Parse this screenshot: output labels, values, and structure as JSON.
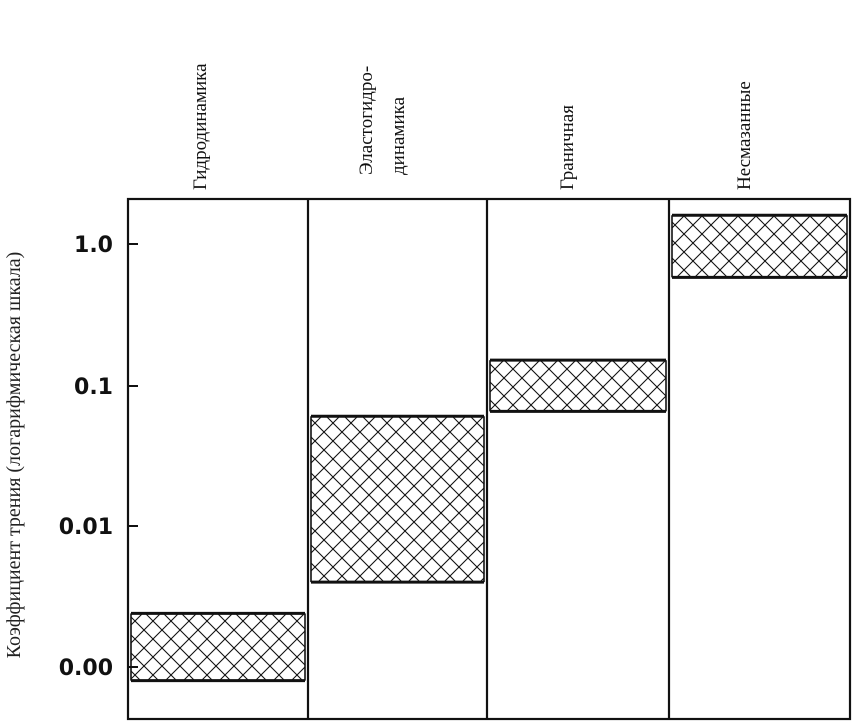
{
  "chart_data": {
    "type": "bar",
    "title": "",
    "subtitle": "",
    "xlabel": "",
    "ylabel": "Коэффициент трения (логарифмическая шкала)",
    "yscale": "log",
    "ylim": [
      0.0005,
      2.0
    ],
    "yticks": [
      {
        "value": 0.001,
        "label": "0.00"
      },
      {
        "value": 0.01,
        "label": "0.01"
      },
      {
        "value": 0.1,
        "label": "0.1"
      },
      {
        "value": 1.0,
        "label": "1.0"
      }
    ],
    "grid": false,
    "legend": "none",
    "categories": [
      [
        "Гидродинамика"
      ],
      [
        "Эластогидро-",
        "динамика"
      ],
      [
        "Граничная"
      ],
      [
        "Несмазанные"
      ]
    ],
    "ranges": [
      {
        "low": 0.0008,
        "high": 0.0024
      },
      {
        "low": 0.004,
        "high": 0.06
      },
      {
        "low": 0.065,
        "high": 0.15
      },
      {
        "low": 0.58,
        "high": 1.6
      }
    ],
    "fill": "crosshatch",
    "colors": {
      "ink": "#111111",
      "background": "#ffffff"
    }
  }
}
